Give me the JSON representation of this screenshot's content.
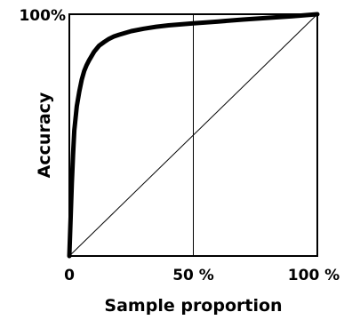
{
  "chart_data": {
    "type": "line",
    "title": "",
    "xlabel": "Sample proportion",
    "ylabel": "Accuracy",
    "xlim": [
      0,
      100
    ],
    "ylim": [
      0,
      100
    ],
    "x_ticks": [
      {
        "value": 0,
        "label": "0"
      },
      {
        "value": 50,
        "label": "50 %"
      },
      {
        "value": 100,
        "label": "100 %"
      }
    ],
    "y_ticks": [
      {
        "value": 100,
        "label": "100%"
      }
    ],
    "grid": false,
    "reference_lines": [
      {
        "type": "vertical",
        "x": 50
      },
      {
        "type": "diagonal",
        "from": [
          0,
          0
        ],
        "to": [
          100,
          100
        ]
      }
    ],
    "series": [
      {
        "x": [
          0,
          0.5,
          1,
          1.5,
          2,
          3,
          4,
          5,
          6,
          7,
          8,
          10,
          12,
          14,
          16,
          18,
          20,
          25,
          30,
          35,
          40,
          45,
          50,
          60,
          70,
          80,
          90,
          95,
          100
        ],
        "y": [
          0,
          15,
          30,
          42,
          52,
          62,
          68,
          73,
          76.5,
          79,
          81,
          84.5,
          87,
          88.5,
          89.8,
          90.8,
          91.5,
          93,
          94,
          94.8,
          95.4,
          95.8,
          96.2,
          97,
          97.8,
          98.5,
          99.2,
          99.6,
          100
        ],
        "color": "#000000"
      }
    ]
  }
}
